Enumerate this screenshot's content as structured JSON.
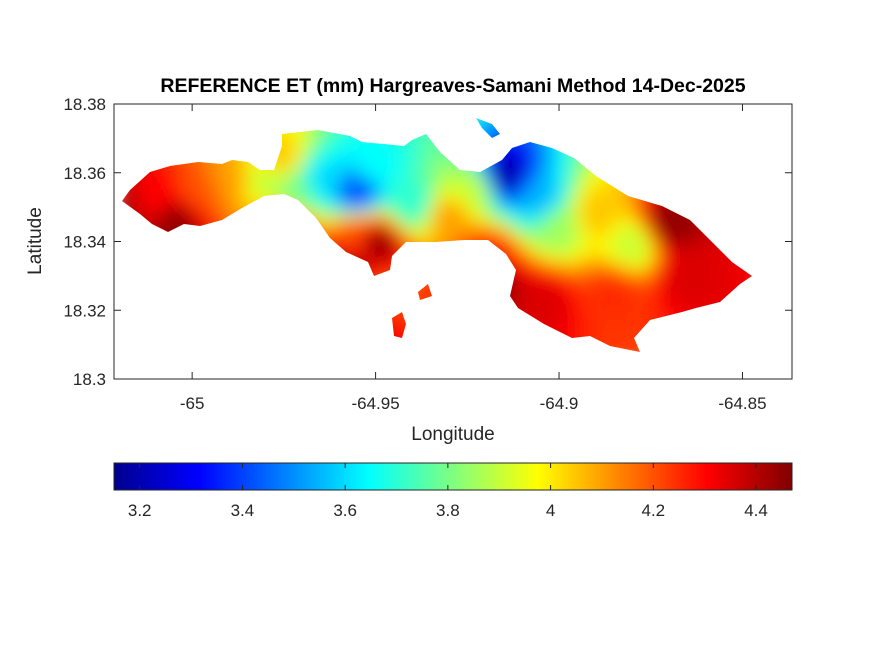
{
  "chart_data": {
    "type": "heatmap",
    "title": "REFERENCE ET (mm) Hargreaves-Samani Method  14-Dec-2025",
    "xlabel": "Longitude",
    "ylabel": "Latitude",
    "xlim": [
      -65.0213,
      -64.8365
    ],
    "ylim": [
      18.3,
      18.38
    ],
    "xticks": [
      {
        "value": -65,
        "label": "-65"
      },
      {
        "value": -64.95,
        "label": "-64.95"
      },
      {
        "value": -64.9,
        "label": "-64.9"
      },
      {
        "value": -64.85,
        "label": "-64.85"
      }
    ],
    "yticks": [
      {
        "value": 18.3,
        "label": "18.3"
      },
      {
        "value": 18.32,
        "label": "18.32"
      },
      {
        "value": 18.34,
        "label": "18.34"
      },
      {
        "value": 18.36,
        "label": "18.36"
      },
      {
        "value": 18.38,
        "label": "18.38"
      }
    ],
    "colorbar": {
      "colormap": "jet",
      "range": [
        3.15,
        4.47
      ],
      "orientation": "horizontal",
      "ticks": [
        {
          "value": 3.2,
          "label": "3.2"
        },
        {
          "value": 3.4,
          "label": "3.4"
        },
        {
          "value": 3.6,
          "label": "3.6"
        },
        {
          "value": 3.8,
          "label": "3.8"
        },
        {
          "value": 4.0,
          "label": "4"
        },
        {
          "value": 4.2,
          "label": "4.2"
        },
        {
          "value": 4.4,
          "label": "4.4"
        }
      ]
    },
    "series": [
      {
        "values": [
          {
            "lon": -65.018,
            "lat": 18.349,
            "et": 4.4
          },
          {
            "lon": -65.01,
            "lat": 18.352,
            "et": 4.3
          },
          {
            "lon": -65.005,
            "lat": 18.346,
            "et": 4.45
          },
          {
            "lon": -64.998,
            "lat": 18.355,
            "et": 4.2
          },
          {
            "lon": -64.99,
            "lat": 18.358,
            "et": 4.1
          },
          {
            "lon": -64.98,
            "lat": 18.358,
            "et": 3.9
          },
          {
            "lon": -64.976,
            "lat": 18.364,
            "et": 4.05
          },
          {
            "lon": -64.972,
            "lat": 18.355,
            "et": 3.8
          },
          {
            "lon": -64.965,
            "lat": 18.358,
            "et": 3.6
          },
          {
            "lon": -64.955,
            "lat": 18.354,
            "et": 3.4
          },
          {
            "lon": -64.95,
            "lat": 18.362,
            "et": 3.65
          },
          {
            "lon": -64.94,
            "lat": 18.351,
            "et": 3.7
          },
          {
            "lon": -64.93,
            "lat": 18.347,
            "et": 4.1
          },
          {
            "lon": -64.923,
            "lat": 18.355,
            "et": 3.9
          },
          {
            "lon": -64.915,
            "lat": 18.359,
            "et": 3.2
          },
          {
            "lon": -64.905,
            "lat": 18.352,
            "et": 3.55
          },
          {
            "lon": -64.9,
            "lat": 18.345,
            "et": 3.85
          },
          {
            "lon": -64.89,
            "lat": 18.348,
            "et": 4.05
          },
          {
            "lon": -64.88,
            "lat": 18.339,
            "et": 3.9
          },
          {
            "lon": -64.87,
            "lat": 18.345,
            "et": 4.45
          },
          {
            "lon": -64.865,
            "lat": 18.33,
            "et": 4.35
          },
          {
            "lon": -64.885,
            "lat": 18.325,
            "et": 4.25
          },
          {
            "lon": -64.905,
            "lat": 18.322,
            "et": 4.35
          },
          {
            "lon": -64.918,
            "lat": 18.326,
            "et": 4.45
          },
          {
            "lon": -64.92,
            "lat": 18.335,
            "et": 4.3
          },
          {
            "lon": -64.955,
            "lat": 18.342,
            "et": 4.2
          },
          {
            "lon": -64.95,
            "lat": 18.34,
            "et": 4.45
          },
          {
            "lon": -64.96,
            "lat": 18.331,
            "et": 4.45
          },
          {
            "lon": -64.975,
            "lat": 18.344,
            "et": 4.3
          },
          {
            "lon": -64.948,
            "lat": 18.325,
            "et": 4.2
          },
          {
            "lon": -64.955,
            "lat": 18.317,
            "et": 4.4
          }
        ]
      }
    ],
    "grid": false
  }
}
